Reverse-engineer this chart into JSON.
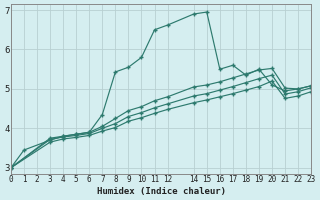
{
  "xlabel": "Humidex (Indice chaleur)",
  "bg_color": "#d5eef0",
  "grid_color": "#b8d0d2",
  "line_color": "#2d7a6e",
  "xlim": [
    0,
    23
  ],
  "ylim": [
    2.85,
    7.15
  ],
  "yticks": [
    3,
    4,
    5,
    6,
    7
  ],
  "xtick_positions": [
    0,
    1,
    2,
    3,
    4,
    5,
    6,
    7,
    8,
    9,
    10,
    11,
    12,
    14,
    15,
    16,
    17,
    18,
    19,
    20,
    21,
    22,
    23
  ],
  "xtick_labels": [
    "0",
    "1",
    "2",
    "3",
    "4",
    "5",
    "6",
    "7",
    "8",
    "9",
    "10",
    "11",
    "12",
    "14",
    "15",
    "16",
    "17",
    "18",
    "19",
    "20",
    "21",
    "22",
    "23"
  ],
  "series": [
    {
      "x": [
        0,
        1,
        3,
        4,
        5,
        6,
        7,
        8,
        9,
        10,
        11,
        12,
        14,
        15,
        16,
        17,
        18,
        19,
        20,
        21,
        22,
        23
      ],
      "y": [
        3.0,
        3.45,
        3.7,
        3.8,
        3.85,
        3.9,
        4.35,
        5.43,
        5.55,
        5.8,
        6.5,
        6.62,
        6.9,
        6.95,
        5.5,
        5.6,
        5.35,
        5.5,
        5.1,
        4.95,
        5.0,
        5.08
      ]
    },
    {
      "x": [
        0,
        3,
        4,
        5,
        6,
        7,
        8,
        9,
        10,
        11,
        12,
        14,
        15,
        16,
        17,
        18,
        19,
        20,
        21,
        22,
        23
      ],
      "y": [
        3.0,
        3.75,
        3.8,
        3.85,
        3.9,
        4.05,
        4.25,
        4.45,
        4.55,
        4.7,
        4.8,
        5.05,
        5.1,
        5.18,
        5.28,
        5.38,
        5.48,
        5.52,
        5.02,
        5.0,
        5.08
      ]
    },
    {
      "x": [
        0,
        3,
        4,
        5,
        6,
        7,
        8,
        9,
        10,
        11,
        12,
        14,
        15,
        16,
        17,
        18,
        19,
        20,
        21,
        22,
        23
      ],
      "y": [
        3.0,
        3.72,
        3.78,
        3.82,
        3.87,
        4.0,
        4.12,
        4.3,
        4.4,
        4.52,
        4.62,
        4.82,
        4.88,
        4.97,
        5.06,
        5.16,
        5.26,
        5.35,
        4.87,
        4.93,
        5.03
      ]
    },
    {
      "x": [
        0,
        3,
        4,
        5,
        6,
        7,
        8,
        9,
        10,
        11,
        12,
        14,
        15,
        16,
        17,
        18,
        19,
        20,
        21,
        22,
        23
      ],
      "y": [
        3.0,
        3.65,
        3.73,
        3.77,
        3.82,
        3.93,
        4.02,
        4.18,
        4.27,
        4.38,
        4.48,
        4.65,
        4.72,
        4.8,
        4.88,
        4.97,
        5.06,
        5.2,
        4.76,
        4.82,
        4.93
      ]
    }
  ]
}
